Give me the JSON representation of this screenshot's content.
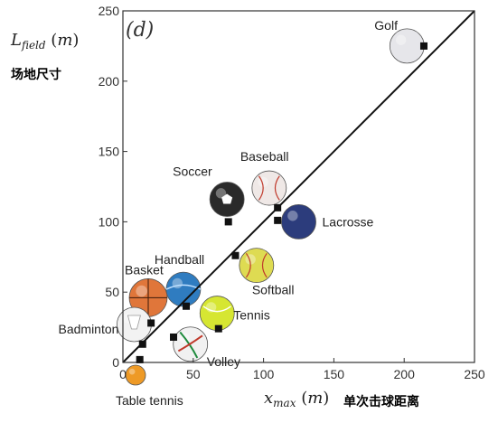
{
  "chart_data": {
    "type": "scatter",
    "panel_tag": "(d)",
    "xlabel": "x_max (m)",
    "ylabel": "L_field (m)",
    "xlabel_cn": "单次击球距离",
    "ylabel_cn": "场地尺寸",
    "xlim": [
      0,
      250
    ],
    "ylim": [
      0,
      250
    ],
    "xticks": [
      0,
      50,
      100,
      150,
      200,
      250
    ],
    "yticks": [
      0,
      50,
      100,
      150,
      200,
      250
    ],
    "diagonal": [
      [
        0,
        0
      ],
      [
        250,
        250
      ]
    ],
    "points": [
      {
        "x": 214,
        "y": 225
      },
      {
        "x": 110,
        "y": 110
      },
      {
        "x": 110,
        "y": 101
      },
      {
        "x": 75,
        "y": 100
      },
      {
        "x": 80,
        "y": 76
      },
      {
        "x": 45,
        "y": 40
      },
      {
        "x": 68,
        "y": 24
      },
      {
        "x": 36,
        "y": 18
      },
      {
        "x": 20,
        "y": 28
      },
      {
        "x": 14,
        "y": 13
      },
      {
        "x": 12,
        "y": 2
      }
    ],
    "sports": [
      {
        "name": "Golf",
        "x": 202,
        "y": 225,
        "color": "#e6e6ea",
        "icon": "golf-ball-icon"
      },
      {
        "name": "Baseball",
        "x": 104,
        "y": 124,
        "color": "#efe8e6",
        "icon": "baseball-icon"
      },
      {
        "name": "Soccer",
        "x": 74,
        "y": 116,
        "color": "#2a2a2a",
        "icon": "soccer-ball-icon"
      },
      {
        "name": "Lacrosse",
        "x": 125,
        "y": 100,
        "color": "#2c3c7c",
        "icon": "lacrosse-ball-icon"
      },
      {
        "name": "Handball",
        "x": 43,
        "y": 52,
        "color": "#2f7cc0",
        "icon": "handball-icon"
      },
      {
        "name": "Softball",
        "x": 95,
        "y": 69,
        "color": "#dedb52",
        "icon": "softball-icon"
      },
      {
        "name": "Basket",
        "x": 18,
        "y": 46,
        "color": "#e0763a",
        "icon": "basketball-icon"
      },
      {
        "name": "Tennis",
        "x": 67,
        "y": 35,
        "color": "#d6e632",
        "icon": "tennis-ball-icon"
      },
      {
        "name": "Badminton",
        "x": 8,
        "y": 27,
        "color": "#f2f2f2",
        "icon": "shuttlecock-icon"
      },
      {
        "name": "Volley",
        "x": 48,
        "y": 13,
        "color": "#f1f1f1",
        "icon": "volleyball-icon"
      },
      {
        "name": "Table tennis",
        "x": 9,
        "y": -9,
        "color": "#ee9a26",
        "icon": "table-tennis-ball-icon"
      }
    ]
  }
}
